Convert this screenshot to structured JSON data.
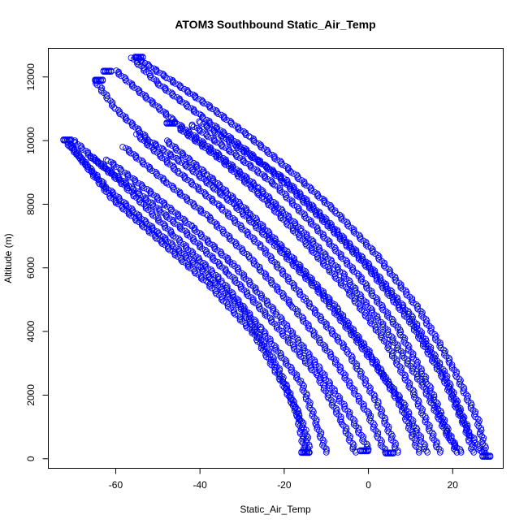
{
  "chart_data": {
    "type": "scatter",
    "title": "ATOM3 Southbound Static_Air_Temp",
    "xlabel": "Static_Air_Temp",
    "ylabel": "Altitude (m)",
    "xlim": [
      -76,
      32
    ],
    "ylim": [
      -300,
      12900
    ],
    "x_ticks": [
      -60,
      -40,
      -20,
      0,
      20
    ],
    "y_ticks": [
      0,
      2000,
      4000,
      6000,
      8000,
      10000,
      12000
    ],
    "marker": "open-circle",
    "color": "#0000ff",
    "grid": false,
    "legend": "none",
    "series": [
      {
        "values": [
          [
            -72,
            10000
          ],
          [
            -62,
            8500
          ],
          [
            -50,
            7100
          ],
          [
            -40,
            6000
          ],
          [
            -30,
            4700
          ],
          [
            -22,
            3000
          ],
          [
            -17,
            1500
          ],
          [
            -15,
            200
          ]
        ]
      },
      {
        "values": [
          [
            -71,
            9900
          ],
          [
            -61,
            8200
          ],
          [
            -49,
            6800
          ],
          [
            -38,
            5500
          ],
          [
            -27,
            3900
          ],
          [
            -20,
            2300
          ],
          [
            -15,
            900
          ],
          [
            -14,
            200
          ]
        ]
      },
      {
        "values": [
          [
            -70,
            10000
          ],
          [
            -58,
            8600
          ],
          [
            -46,
            7000
          ],
          [
            -35,
            5600
          ],
          [
            -25,
            4000
          ],
          [
            -16,
            2400
          ],
          [
            -12,
            1000
          ],
          [
            -10,
            200
          ]
        ]
      },
      {
        "values": [
          [
            -66,
            9500
          ],
          [
            -55,
            8400
          ],
          [
            -44,
            7200
          ],
          [
            -33,
            5800
          ],
          [
            -22,
            4200
          ],
          [
            -12,
            2600
          ],
          [
            -6,
            1100
          ],
          [
            -3,
            200
          ]
        ]
      },
      {
        "values": [
          [
            -62,
            9400
          ],
          [
            -52,
            8400
          ],
          [
            -42,
            7300
          ],
          [
            -32,
            6100
          ],
          [
            -22,
            4600
          ],
          [
            -12,
            2900
          ],
          [
            -4,
            1300
          ],
          [
            0,
            300
          ]
        ]
      },
      {
        "values": [
          [
            -58,
            9800
          ],
          [
            -48,
            8700
          ],
          [
            -38,
            7600
          ],
          [
            -28,
            6300
          ],
          [
            -18,
            4800
          ],
          [
            -8,
            3100
          ],
          [
            0,
            1400
          ],
          [
            4,
            200
          ]
        ]
      },
      {
        "values": [
          [
            -55,
            10200
          ],
          [
            -45,
            9000
          ],
          [
            -35,
            7900
          ],
          [
            -25,
            6600
          ],
          [
            -15,
            5000
          ],
          [
            -5,
            3400
          ],
          [
            2,
            1800
          ],
          [
            7,
            200
          ]
        ]
      },
      {
        "values": [
          [
            -48,
            10000
          ],
          [
            -38,
            8900
          ],
          [
            -28,
            7700
          ],
          [
            -18,
            6300
          ],
          [
            -8,
            4800
          ],
          [
            1,
            3200
          ],
          [
            8,
            1600
          ],
          [
            12,
            200
          ]
        ]
      },
      {
        "values": [
          [
            -45,
            10400
          ],
          [
            -35,
            9400
          ],
          [
            -25,
            8200
          ],
          [
            -15,
            6800
          ],
          [
            -5,
            5300
          ],
          [
            4,
            3700
          ],
          [
            11,
            2000
          ],
          [
            17,
            200
          ]
        ]
      },
      {
        "values": [
          [
            -42,
            10500
          ],
          [
            -32,
            9600
          ],
          [
            -22,
            8600
          ],
          [
            -12,
            7200
          ],
          [
            -2,
            5700
          ],
          [
            7,
            4100
          ],
          [
            14,
            2400
          ],
          [
            21,
            200
          ]
        ]
      },
      {
        "values": [
          [
            -40,
            10600
          ],
          [
            -30,
            9700
          ],
          [
            -20,
            8800
          ],
          [
            -10,
            7500
          ],
          [
            0,
            6100
          ],
          [
            10,
            4500
          ],
          [
            18,
            2700
          ],
          [
            24,
            800
          ],
          [
            27,
            200
          ]
        ]
      },
      {
        "values": [
          [
            -56,
            12600
          ],
          [
            -50,
            11800
          ],
          [
            -40,
            10800
          ],
          [
            -30,
            9800
          ],
          [
            -20,
            8700
          ],
          [
            -10,
            7400
          ],
          [
            0,
            6000
          ],
          [
            10,
            4300
          ],
          [
            18,
            2500
          ],
          [
            23,
            1000
          ],
          [
            25,
            200
          ]
        ]
      },
      {
        "values": [
          [
            -55,
            12600
          ],
          [
            -48,
            12000
          ],
          [
            -38,
            11100
          ],
          [
            -28,
            10100
          ],
          [
            -18,
            9000
          ],
          [
            -8,
            7800
          ],
          [
            2,
            6400
          ],
          [
            12,
            4700
          ],
          [
            20,
            2900
          ],
          [
            26,
            1200
          ],
          [
            28,
            100
          ]
        ]
      },
      {
        "values": [
          [
            -60,
            12200
          ],
          [
            -54,
            11500
          ],
          [
            -46,
            10600
          ],
          [
            -36,
            9600
          ],
          [
            -26,
            8500
          ],
          [
            -16,
            7200
          ],
          [
            -6,
            5800
          ],
          [
            4,
            4100
          ],
          [
            13,
            2300
          ],
          [
            19,
            700
          ],
          [
            22,
            200
          ]
        ]
      },
      {
        "values": [
          [
            -65,
            11900
          ],
          [
            -60,
            11000
          ],
          [
            -52,
            10000
          ],
          [
            -42,
            9100
          ],
          [
            -32,
            8000
          ],
          [
            -22,
            6700
          ],
          [
            -12,
            5300
          ],
          [
            -2,
            3600
          ],
          [
            8,
            1800
          ],
          [
            14,
            200
          ]
        ]
      }
    ],
    "markers": [
      {
        "x": -54.5,
        "y": 12620
      },
      {
        "x": -62,
        "y": 12180
      },
      {
        "x": -64,
        "y": 11900
      },
      {
        "x": -71.5,
        "y": 10020
      },
      {
        "x": -47,
        "y": 10550
      },
      {
        "x": -15,
        "y": 200
      },
      {
        "x": -1,
        "y": 250
      },
      {
        "x": 5,
        "y": 180
      },
      {
        "x": 28,
        "y": 80
      }
    ]
  }
}
